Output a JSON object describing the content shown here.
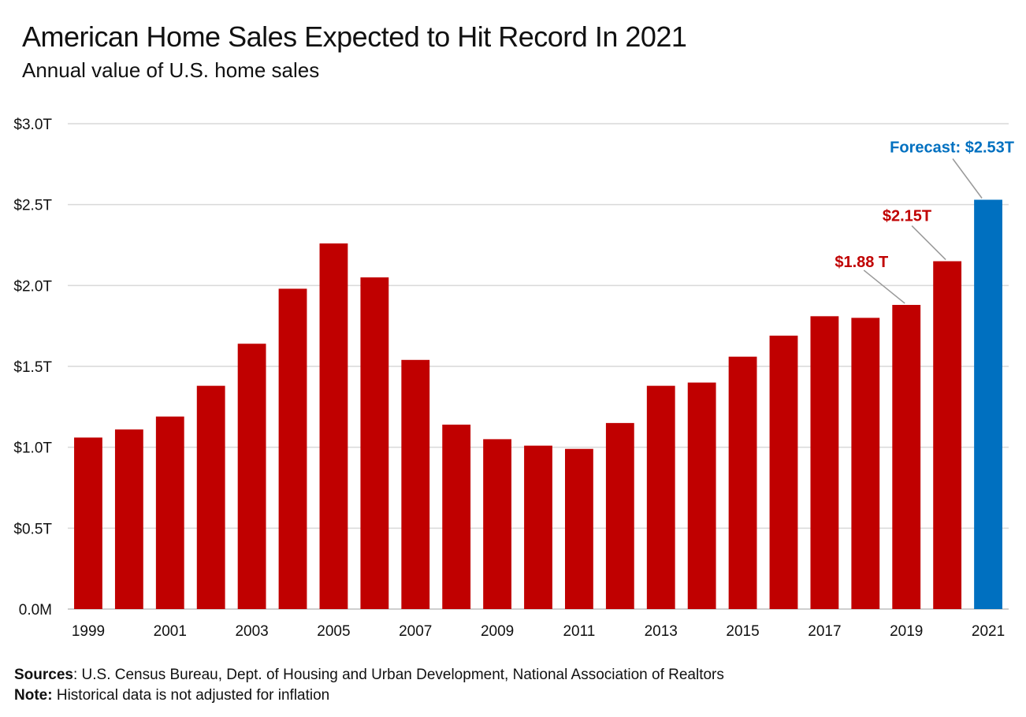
{
  "header": {
    "title": "American Home Sales Expected to Hit Record In 2021",
    "subtitle": "Annual value of U.S. home sales"
  },
  "footer": {
    "sources_label": "Sources",
    "sources_text": ": U.S. Census Bureau, Dept. of Housing and Urban Development, National Association of Realtors",
    "note_label": "Note:",
    "note_text": " Historical data is not adjusted for inflation"
  },
  "colors": {
    "historical": "#c00000",
    "forecast": "#0070c0",
    "grid": "#d9d9d9",
    "leader": "#999999"
  },
  "chart_data": {
    "type": "bar",
    "categories": [
      "1999",
      "2000",
      "2001",
      "2002",
      "2003",
      "2004",
      "2005",
      "2006",
      "2007",
      "2008",
      "2009",
      "2010",
      "2011",
      "2012",
      "2013",
      "2014",
      "2015",
      "2016",
      "2017",
      "2018",
      "2019",
      "2020",
      "2021"
    ],
    "values": [
      1.06,
      1.11,
      1.19,
      1.38,
      1.64,
      1.98,
      2.26,
      2.05,
      1.54,
      1.14,
      1.05,
      1.01,
      0.99,
      1.15,
      1.38,
      1.4,
      1.56,
      1.69,
      1.81,
      1.8,
      1.88,
      2.15,
      2.53
    ],
    "forecast_categories": [
      "2021"
    ],
    "x_tick_labels": [
      "1999",
      "2001",
      "2003",
      "2005",
      "2007",
      "2009",
      "2011",
      "2013",
      "2015",
      "2017",
      "2019",
      "2021"
    ],
    "y_ticks": [
      {
        "value": 0,
        "label": "0.0M"
      },
      {
        "value": 0.5,
        "label": "$0.5T"
      },
      {
        "value": 1.0,
        "label": "$1.0T"
      },
      {
        "value": 1.5,
        "label": "$1.5T"
      },
      {
        "value": 2.0,
        "label": "$2.0T"
      },
      {
        "value": 2.5,
        "label": "$2.5T"
      },
      {
        "value": 3.0,
        "label": "$3.0T"
      }
    ],
    "ylim": [
      0,
      3.0
    ],
    "grid": true,
    "annotations": [
      {
        "category": "2019",
        "text": "$1.88 T",
        "series": "historical"
      },
      {
        "category": "2020",
        "text": "$2.15T",
        "series": "historical"
      },
      {
        "category": "2021",
        "text": "Forecast: $2.53T",
        "series": "forecast"
      }
    ],
    "title": "American Home Sales Expected to Hit Record In 2021",
    "subtitle": "Annual value of U.S. home sales",
    "xlabel": "",
    "ylabel": ""
  }
}
